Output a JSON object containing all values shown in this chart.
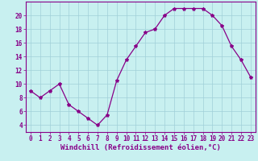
{
  "x": [
    0,
    1,
    2,
    3,
    4,
    5,
    6,
    7,
    8,
    9,
    10,
    11,
    12,
    13,
    14,
    15,
    16,
    17,
    18,
    19,
    20,
    21,
    22,
    23
  ],
  "y": [
    9,
    8,
    9,
    10,
    7,
    6,
    5,
    4,
    5.5,
    10.5,
    13.5,
    15.5,
    17.5,
    18,
    20,
    21,
    21,
    21,
    21,
    20,
    18.5,
    15.5,
    13.5,
    11
  ],
  "line_color": "#880088",
  "marker": "*",
  "marker_size": 3,
  "bg_color": "#c8f0f0",
  "grid_color": "#a0d0d8",
  "xlabel": "Windchill (Refroidissement éolien,°C)",
  "xlabel_color": "#880088",
  "ylim": [
    3,
    22
  ],
  "xlim": [
    -0.5,
    23.5
  ],
  "yticks": [
    4,
    6,
    8,
    10,
    12,
    14,
    16,
    18,
    20
  ],
  "xticks": [
    0,
    1,
    2,
    3,
    4,
    5,
    6,
    7,
    8,
    9,
    10,
    11,
    12,
    13,
    14,
    15,
    16,
    17,
    18,
    19,
    20,
    21,
    22,
    23
  ],
  "tick_color": "#880088",
  "tick_labelsize": 5.5,
  "xlabel_fontsize": 6.5,
  "linewidth": 0.9
}
